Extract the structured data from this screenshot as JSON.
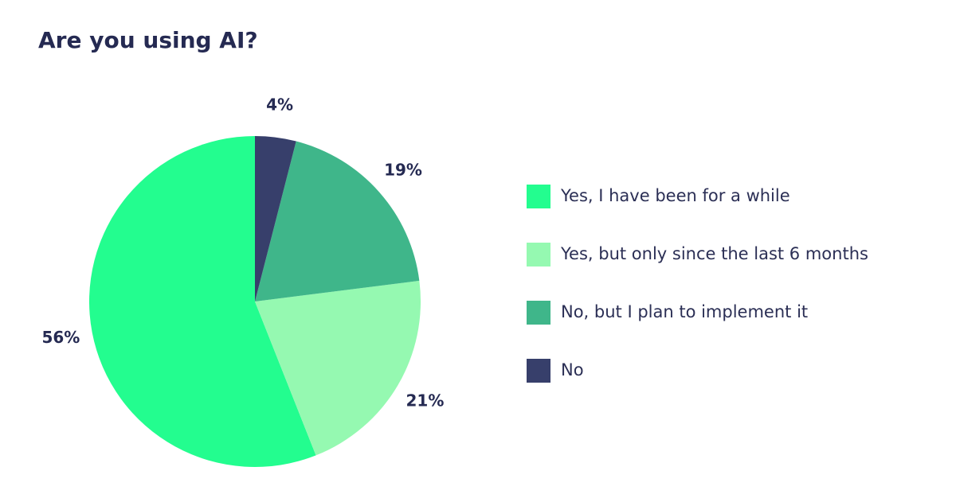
{
  "chart_data": {
    "type": "pie",
    "title": "Are you using AI?",
    "categories": [
      "Yes, I have been for a while",
      "Yes, but only since the last 6 months",
      "No, but I plan to implement it",
      "No"
    ],
    "values": [
      56,
      21,
      19,
      4
    ],
    "value_labels": [
      "56%",
      "21%",
      "19%",
      "4%"
    ],
    "colors": [
      "#23fd8f",
      "#95f9b1",
      "#3fb68a",
      "#373f6b"
    ],
    "legend": "right"
  }
}
